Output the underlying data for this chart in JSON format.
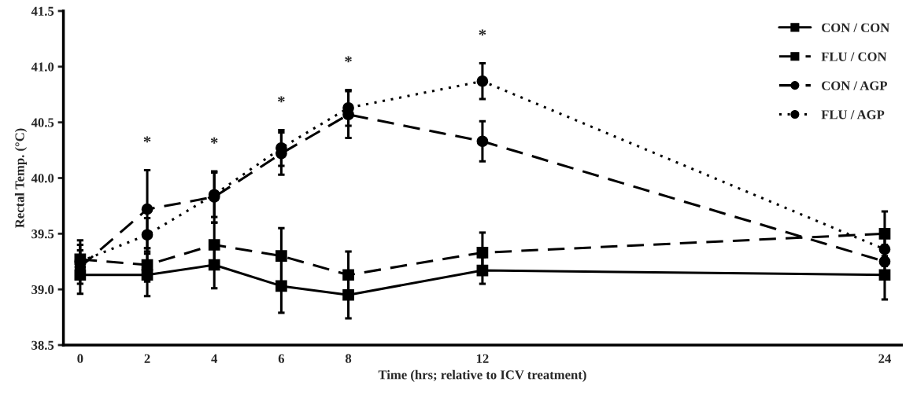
{
  "chart_data": {
    "type": "line",
    "xlabel": "Time (hrs; relative to ICV treatment)",
    "ylabel": "Rectal Temp. (°C)",
    "x": [
      0,
      2,
      4,
      6,
      8,
      12,
      24
    ],
    "xlim": [
      -0.5,
      24.5
    ],
    "xticks": [
      0,
      2,
      4,
      6,
      8,
      12,
      24
    ],
    "ylim": [
      38.5,
      41.5
    ],
    "yticks": [
      38.5,
      {
        "value": 39,
        "label": "39.0"
      },
      39.5,
      {
        "value": 40,
        "label": "40.0"
      },
      40.5,
      {
        "value": 41,
        "label": "41.0"
      },
      41.5
    ],
    "grid": false,
    "legend": "top right",
    "series": [
      {
        "name": "CON / CON",
        "color": "#000000",
        "marker": "square",
        "line_style": "solid",
        "values": [
          39.13,
          39.13,
          39.22,
          39.03,
          38.95,
          39.17,
          39.13
        ],
        "errors": [
          0.17,
          0.19,
          0.21,
          0.24,
          0.21,
          0.12,
          0.22
        ]
      },
      {
        "name": "FLU / CON",
        "color": "#000000",
        "marker": "square",
        "line_style": "dashed",
        "values": [
          39.27,
          39.22,
          39.4,
          39.3,
          39.13,
          39.33,
          39.5
        ],
        "errors": [
          0.17,
          0.15,
          0.2,
          0.25,
          0.21,
          0.18,
          0.2
        ]
      },
      {
        "name": "CON / AGP",
        "color": "#000000",
        "marker": "circle",
        "line_style": "dashed",
        "values": [
          39.2,
          39.72,
          39.83,
          40.22,
          40.57,
          40.33,
          39.25
        ],
        "errors": [
          0.15,
          0.35,
          0.23,
          0.19,
          0.21,
          0.18,
          0.15
        ]
      },
      {
        "name": "FLU / AGP",
        "color": "#000000",
        "marker": "circle",
        "line_style": "dotted",
        "values": [
          39.25,
          39.49,
          39.85,
          40.27,
          40.63,
          40.87,
          39.36
        ],
        "errors": [
          0.15,
          0.15,
          0.2,
          0.16,
          0.16,
          0.16,
          0.15
        ]
      }
    ],
    "annotations": [
      "*",
      "*",
      "*",
      "*",
      "*"
    ]
  }
}
